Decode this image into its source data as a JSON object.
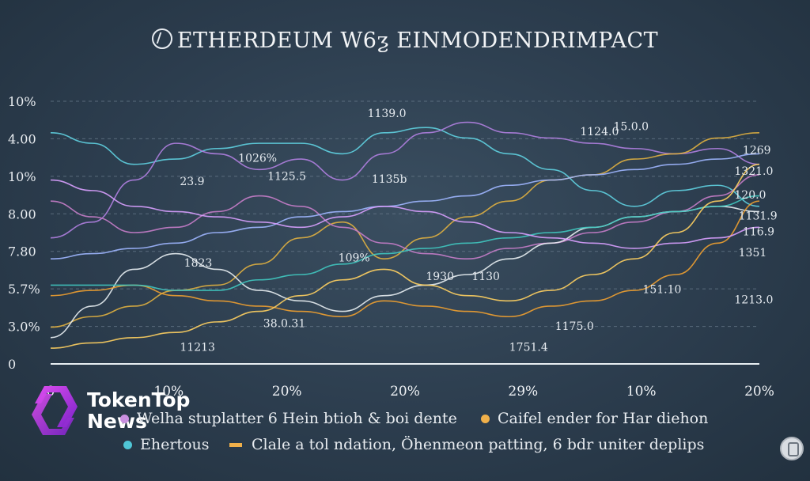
{
  "chart_data": {
    "type": "line",
    "title": "ETHERDEUM W6ƺ EINMODENDRIMPACT",
    "y_ticks": [
      "10%",
      "4.00",
      "10%",
      "8.00",
      "7.80",
      "5.7%",
      "3.0%",
      "0"
    ],
    "x_ticks": [
      "0",
      "10%",
      "20%",
      "20%",
      "29%",
      "10%",
      "20%"
    ],
    "x": [
      0,
      1,
      2,
      3,
      4,
      5,
      6,
      7,
      8,
      9,
      10,
      11,
      12,
      13,
      14,
      15,
      16,
      17
    ],
    "ylim": [
      0,
      100
    ],
    "grid": true,
    "series": [
      {
        "color": "#5fd0e0",
        "values": [
          88,
          84,
          76,
          78,
          82,
          84,
          84,
          80,
          88,
          90,
          86,
          80,
          74,
          66,
          60,
          66,
          68,
          60
        ]
      },
      {
        "color": "#b07fe0",
        "values": [
          48,
          54,
          70,
          84,
          80,
          74,
          78,
          70,
          80,
          88,
          92,
          88,
          86,
          84,
          82,
          80,
          82,
          76
        ]
      },
      {
        "color": "#e0b040",
        "values": [
          14,
          18,
          22,
          28,
          30,
          38,
          48,
          54,
          40,
          48,
          56,
          62,
          70,
          72,
          78,
          80,
          86,
          88
        ]
      },
      {
        "color": "#c77dc9",
        "values": [
          62,
          56,
          50,
          52,
          58,
          64,
          60,
          52,
          46,
          42,
          40,
          44,
          46,
          50,
          54,
          58,
          64,
          72
        ]
      },
      {
        "color": "#e8eef2",
        "values": [
          10,
          22,
          36,
          42,
          36,
          28,
          24,
          20,
          26,
          30,
          34,
          40,
          46,
          52,
          56,
          58,
          60,
          58
        ]
      },
      {
        "color": "#f0a030",
        "values": [
          26,
          28,
          30,
          26,
          24,
          22,
          20,
          18,
          24,
          22,
          20,
          18,
          22,
          24,
          28,
          34,
          46,
          62
        ]
      },
      {
        "color": "#40c8c0",
        "values": [
          30,
          30,
          30,
          28,
          28,
          32,
          34,
          38,
          42,
          44,
          46,
          48,
          50,
          52,
          56,
          58,
          60,
          64
        ]
      },
      {
        "color": "#9fb6ff",
        "values": [
          40,
          42,
          44,
          46,
          50,
          52,
          56,
          58,
          60,
          62,
          64,
          68,
          70,
          72,
          74,
          76,
          78,
          80
        ]
      },
      {
        "color": "#d9a0ff",
        "values": [
          70,
          66,
          60,
          58,
          56,
          54,
          52,
          56,
          60,
          58,
          54,
          50,
          48,
          46,
          44,
          46,
          48,
          52
        ]
      },
      {
        "color": "#ffd060",
        "values": [
          6,
          8,
          10,
          12,
          16,
          20,
          26,
          32,
          36,
          30,
          26,
          24,
          28,
          34,
          40,
          50,
          62,
          76
        ]
      }
    ],
    "data_labels": [
      {
        "text": "1139.0",
        "x": 7.6,
        "y": 94
      },
      {
        "text": "15.0.0",
        "x": 13.5,
        "y": 89
      },
      {
        "text": "1124.0",
        "x": 12.7,
        "y": 87
      },
      {
        "text": "1026%",
        "x": 4.5,
        "y": 77
      },
      {
        "text": "1125.5",
        "x": 5.2,
        "y": 70
      },
      {
        "text": "1135b",
        "x": 7.7,
        "y": 69
      },
      {
        "text": "23.9",
        "x": 3.1,
        "y": 68
      },
      {
        "text": "1269",
        "x": 16.6,
        "y": 80
      },
      {
        "text": "1321.0",
        "x": 16.4,
        "y": 72
      },
      {
        "text": "120.0",
        "x": 16.4,
        "y": 63
      },
      {
        "text": "1131.9",
        "x": 16.5,
        "y": 55
      },
      {
        "text": "116.9",
        "x": 16.6,
        "y": 49
      },
      {
        "text": "1351",
        "x": 16.5,
        "y": 41
      },
      {
        "text": "1823",
        "x": 3.2,
        "y": 37
      },
      {
        "text": "109%",
        "x": 6.9,
        "y": 39
      },
      {
        "text": "1930",
        "x": 9.0,
        "y": 32
      },
      {
        "text": "1130",
        "x": 10.1,
        "y": 32
      },
      {
        "text": "151.10",
        "x": 14.2,
        "y": 27
      },
      {
        "text": "1213.0",
        "x": 16.4,
        "y": 23
      },
      {
        "text": "38.0.31",
        "x": 5.1,
        "y": 14
      },
      {
        "text": "1175.0",
        "x": 12.1,
        "y": 13
      },
      {
        "text": "11213",
        "x": 3.1,
        "y": 5
      },
      {
        "text": "1751.4",
        "x": 11.0,
        "y": 5
      }
    ]
  },
  "legend": [
    {
      "text": "Welha stuplatter 6  Hein btioh & boi dente",
      "color": "#c98fe0",
      "kind": "dot"
    },
    {
      "text": "Caifel ender for Har diehon",
      "color": "#f0b04a",
      "kind": "dot"
    },
    {
      "text": "Ehertous",
      "color": "#4fc6d6",
      "kind": "dot"
    },
    {
      "text": "Clale a tol ndation, Öhenmeon patting, 6 bdr uniter deplips",
      "color": "#f0b04a",
      "kind": "bar"
    }
  ],
  "brand": {
    "line1": "TokenTop",
    "line2": "News",
    "accent": "#c23bd8"
  }
}
